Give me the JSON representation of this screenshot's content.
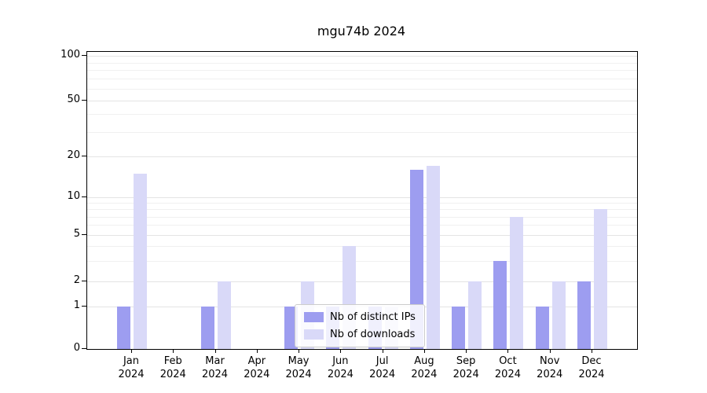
{
  "title": "mgu74b 2024",
  "chart_data": {
    "type": "bar",
    "title": "mgu74b 2024",
    "categories": [
      "Jan",
      "Feb",
      "Mar",
      "Apr",
      "May",
      "Jun",
      "Jul",
      "Aug",
      "Sep",
      "Oct",
      "Nov",
      "Dec"
    ],
    "x_year": "2024",
    "series": [
      {
        "name": "Nb of distinct IPs",
        "color": "#9d9df0",
        "values": [
          1,
          0,
          1,
          0,
          1,
          1,
          1,
          16,
          1,
          3,
          1,
          2
        ]
      },
      {
        "name": "Nb of downloads",
        "color": "#d9d9f8",
        "values": [
          15,
          0,
          2,
          0,
          2,
          4,
          1,
          17,
          2,
          7,
          2,
          8
        ]
      }
    ],
    "yscale": "symlog",
    "yticks": [
      0,
      1,
      2,
      5,
      10,
      20,
      50,
      100
    ],
    "y_minor_ticks": [
      3,
      4,
      6,
      7,
      8,
      9,
      30,
      40,
      60,
      70,
      80,
      90
    ],
    "ylim": [
      0,
      115
    ],
    "grid": true,
    "legend_position": "lower center"
  }
}
